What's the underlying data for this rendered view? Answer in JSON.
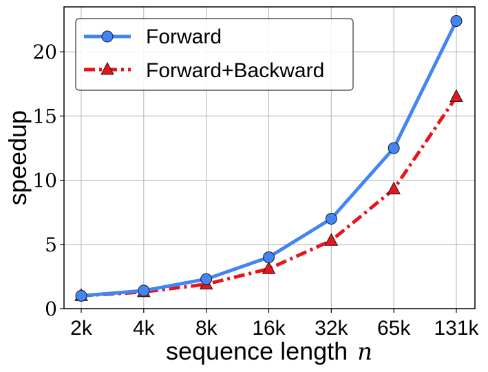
{
  "chart_data": {
    "type": "line",
    "categories": [
      "2k",
      "4k",
      "8k",
      "16k",
      "32k",
      "65k",
      "131k"
    ],
    "series": [
      {
        "name": "Forward",
        "values": [
          1.0,
          1.4,
          2.3,
          4.0,
          7.0,
          12.5,
          22.4
        ],
        "color": "#4285f4",
        "marker": "circle",
        "line_style": "solid"
      },
      {
        "name": "Forward+Backward",
        "values": [
          1.0,
          1.3,
          1.9,
          3.1,
          5.3,
          9.3,
          16.5
        ],
        "color": "#e8141c",
        "marker": "triangle",
        "line_style": "dashdot"
      }
    ],
    "xlabel_text": "sequence length",
    "xlabel_var": "n",
    "ylabel": "speedup",
    "ylim": [
      0,
      23.5
    ],
    "yticks": [
      "0",
      "5",
      "10",
      "15",
      "20"
    ],
    "ytick_values": [
      0,
      5,
      10,
      15,
      20
    ],
    "grid": true,
    "legend_position": "top-left"
  }
}
